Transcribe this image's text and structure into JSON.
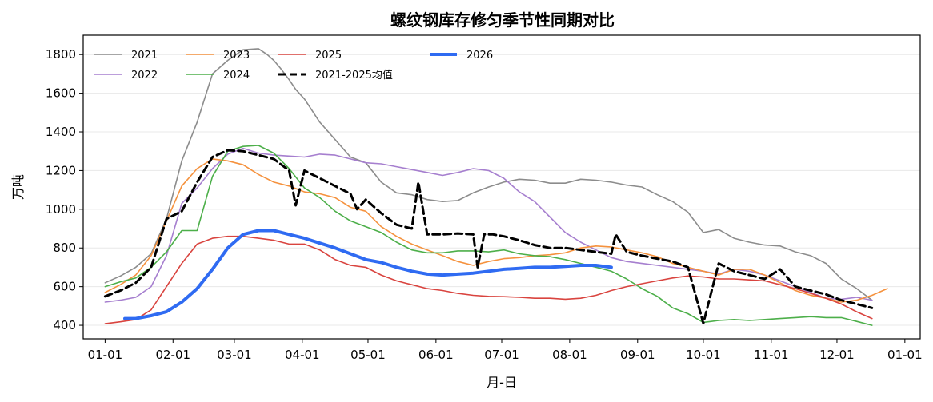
{
  "chart_data": {
    "type": "line",
    "title": "螺纹钢库存修匀季节性同期对比",
    "xlabel": "月-日",
    "ylabel": "万吨",
    "x_ticks": [
      "01-01",
      "02-01",
      "03-01",
      "04-01",
      "05-01",
      "06-01",
      "07-01",
      "08-01",
      "09-01",
      "10-01",
      "11-01",
      "12-01",
      "01-01"
    ],
    "y_ticks": [
      400,
      600,
      800,
      1000,
      1200,
      1400,
      1600,
      1800
    ],
    "xlim_days": [
      -10,
      372
    ],
    "ylim": [
      330,
      1900
    ],
    "legend_position": "top-left",
    "grid_y": true,
    "series": [
      {
        "name": "2021",
        "color": "#8c8c8c",
        "width": 1.6,
        "dash": "",
        "x": [
          0,
          7,
          14,
          21,
          28,
          35,
          42,
          49,
          56,
          63,
          70,
          74,
          77,
          80,
          84,
          87,
          91,
          98,
          105,
          112,
          119,
          126,
          133,
          140,
          147,
          154,
          161,
          168,
          175,
          182,
          189,
          196,
          203,
          210,
          217,
          224,
          231,
          238,
          245,
          252,
          259,
          266,
          273,
          280,
          287,
          294,
          301,
          308,
          315,
          322,
          329,
          336,
          343,
          350
        ],
        "y": [
          620,
          655,
          700,
          770,
          950,
          1250,
          1450,
          1700,
          1770,
          1825,
          1830,
          1800,
          1770,
          1730,
          1670,
          1620,
          1570,
          1450,
          1360,
          1270,
          1240,
          1140,
          1085,
          1075,
          1050,
          1040,
          1045,
          1085,
          1115,
          1140,
          1155,
          1150,
          1135,
          1135,
          1155,
          1150,
          1140,
          1125,
          1115,
          1075,
          1040,
          985,
          880,
          895,
          850,
          830,
          815,
          810,
          780,
          760,
          720,
          640,
          590,
          530
        ]
      },
      {
        "name": "2022",
        "color": "#a67fcf",
        "width": 1.6,
        "dash": "",
        "x": [
          0,
          7,
          14,
          21,
          28,
          35,
          42,
          49,
          56,
          63,
          70,
          77,
          84,
          91,
          98,
          105,
          112,
          119,
          126,
          133,
          140,
          147,
          154,
          161,
          168,
          175,
          182,
          189,
          196,
          203,
          210,
          217,
          224,
          231,
          238,
          245,
          252,
          259,
          266,
          273,
          280,
          287,
          294,
          301,
          308,
          315,
          322,
          329,
          336,
          343,
          350
        ],
        "y": [
          520,
          530,
          545,
          600,
          760,
          1030,
          1110,
          1210,
          1285,
          1315,
          1290,
          1280,
          1275,
          1270,
          1285,
          1280,
          1260,
          1240,
          1235,
          1220,
          1205,
          1190,
          1175,
          1190,
          1210,
          1200,
          1160,
          1090,
          1040,
          960,
          880,
          830,
          790,
          750,
          730,
          720,
          710,
          700,
          690,
          680,
          665,
          690,
          680,
          660,
          630,
          600,
          570,
          540,
          535,
          545,
          530
        ]
      },
      {
        "name": "2023",
        "color": "#f5923e",
        "width": 1.6,
        "dash": "",
        "x": [
          0,
          7,
          14,
          21,
          28,
          35,
          42,
          49,
          56,
          63,
          70,
          77,
          84,
          91,
          98,
          105,
          112,
          119,
          126,
          133,
          140,
          147,
          154,
          161,
          168,
          175,
          182,
          189,
          196,
          203,
          210,
          217,
          224,
          231,
          238,
          245,
          252,
          259,
          266,
          273,
          280,
          287,
          294,
          301,
          308,
          315,
          322,
          329,
          336,
          343,
          350,
          357
        ],
        "y": [
          570,
          610,
          660,
          760,
          940,
          1120,
          1210,
          1260,
          1250,
          1230,
          1180,
          1140,
          1120,
          1090,
          1080,
          1060,
          1010,
          990,
          910,
          860,
          820,
          790,
          760,
          730,
          710,
          730,
          745,
          750,
          760,
          765,
          775,
          800,
          810,
          805,
          790,
          775,
          755,
          720,
          700,
          680,
          660,
          690,
          690,
          660,
          620,
          580,
          555,
          540,
          520,
          530,
          555,
          590
        ]
      },
      {
        "name": "2024",
        "color": "#4daf4a",
        "width": 1.6,
        "dash": "",
        "x": [
          0,
          7,
          14,
          21,
          28,
          35,
          42,
          49,
          56,
          63,
          70,
          77,
          84,
          91,
          98,
          105,
          112,
          119,
          126,
          133,
          140,
          147,
          154,
          161,
          168,
          175,
          182,
          189,
          196,
          203,
          210,
          217,
          224,
          231,
          238,
          245,
          252,
          259,
          266,
          273,
          280,
          287,
          294,
          301,
          308,
          315,
          322,
          329,
          336,
          343,
          350
        ],
        "y": [
          600,
          625,
          645,
          700,
          780,
          890,
          890,
          1170,
          1300,
          1325,
          1330,
          1290,
          1210,
          1110,
          1060,
          990,
          940,
          910,
          880,
          830,
          790,
          775,
          775,
          785,
          785,
          780,
          790,
          770,
          760,
          755,
          740,
          720,
          700,
          680,
          640,
          590,
          550,
          490,
          460,
          415,
          425,
          430,
          425,
          430,
          435,
          440,
          445,
          440,
          440,
          420,
          400
        ]
      },
      {
        "name": "2025",
        "color": "#d9443f",
        "width": 1.6,
        "dash": "",
        "x": [
          0,
          7,
          14,
          21,
          28,
          35,
          42,
          49,
          56,
          63,
          70,
          77,
          84,
          91,
          98,
          105,
          112,
          119,
          126,
          133,
          140,
          147,
          154,
          161,
          168,
          175,
          182,
          189,
          196,
          203,
          210,
          217,
          224,
          231,
          238,
          245,
          252,
          259,
          266,
          273,
          280,
          287,
          294,
          301,
          308,
          315,
          322,
          329,
          336,
          343,
          350
        ],
        "y": [
          408,
          418,
          430,
          480,
          600,
          720,
          820,
          850,
          860,
          860,
          850,
          840,
          820,
          820,
          790,
          740,
          710,
          700,
          660,
          630,
          610,
          590,
          580,
          565,
          555,
          550,
          548,
          545,
          540,
          540,
          535,
          540,
          555,
          580,
          600,
          615,
          630,
          645,
          655,
          650,
          640,
          640,
          635,
          630,
          610,
          590,
          565,
          540,
          510,
          470,
          435
        ]
      },
      {
        "name": "2021-2025均值",
        "color": "#000000",
        "width": 3,
        "dash": "9,5",
        "x": [
          0,
          7,
          14,
          21,
          28,
          35,
          42,
          49,
          56,
          63,
          70,
          77,
          84,
          87,
          91,
          98,
          105,
          112,
          115,
          119,
          126,
          133,
          140,
          143,
          147,
          154,
          161,
          168,
          170,
          173,
          177,
          182,
          189,
          196,
          203,
          210,
          217,
          224,
          231,
          233,
          238,
          245,
          252,
          259,
          266,
          273,
          280,
          287,
          294,
          301,
          308,
          315,
          322,
          329,
          336,
          343,
          350
        ],
        "y": [
          550,
          580,
          620,
          700,
          950,
          990,
          1140,
          1270,
          1305,
          1300,
          1280,
          1260,
          1200,
          1020,
          1200,
          1160,
          1120,
          1080,
          1000,
          1050,
          980,
          920,
          900,
          1140,
          870,
          870,
          875,
          870,
          700,
          870,
          870,
          860,
          840,
          815,
          800,
          800,
          790,
          780,
          770,
          870,
          780,
          760,
          745,
          730,
          700,
          410,
          720,
          680,
          660,
          640,
          690,
          600,
          580,
          560,
          530,
          510,
          490
        ]
      },
      {
        "name": "2026",
        "color": "#2f6bf2",
        "width": 4,
        "dash": "",
        "x": [
          9,
          14,
          21,
          28,
          35,
          42,
          49,
          56,
          63,
          70,
          77,
          84,
          91,
          98,
          105,
          112,
          119,
          126,
          133,
          140,
          147,
          154,
          161,
          168,
          175,
          182,
          189,
          196,
          203,
          210,
          217,
          224,
          231
        ],
        "y": [
          435,
          435,
          450,
          470,
          520,
          590,
          690,
          800,
          870,
          890,
          890,
          870,
          850,
          825,
          800,
          770,
          740,
          725,
          700,
          680,
          665,
          660,
          665,
          670,
          680,
          690,
          695,
          700,
          700,
          705,
          710,
          710,
          700
        ]
      }
    ]
  }
}
